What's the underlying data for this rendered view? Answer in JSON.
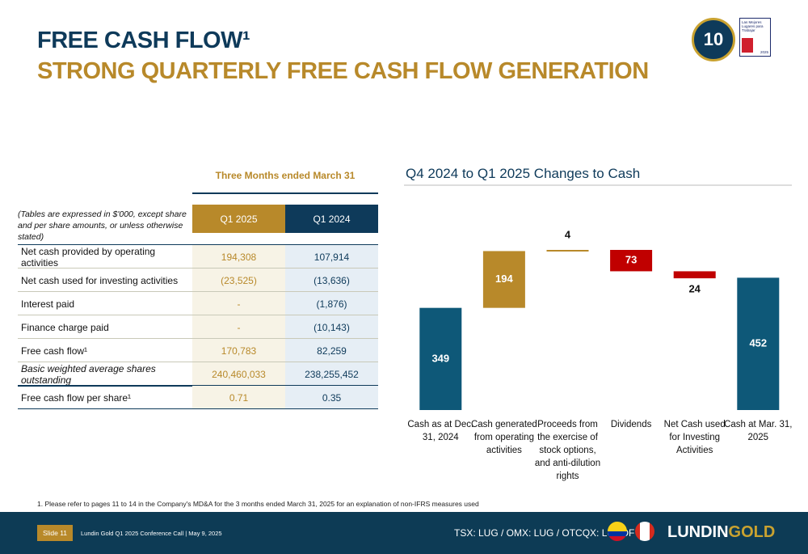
{
  "header": {
    "title": "FREE CASH FLOW¹",
    "subtitle": "STRONG QUARTERLY FREE CASH FLOW GENERATION"
  },
  "badges": {
    "anniversary": "10",
    "gptw": "Las Mejores Lugares para Trabajar",
    "gptw_year": "2025"
  },
  "table": {
    "period": "Three Months ended March 31",
    "note": "(Tables are expressed in $'000, except share and per share amounts, or unless otherwise stated)",
    "columns": [
      "Q1 2025",
      "Q1 2024"
    ],
    "rows": [
      [
        "Net cash provided by operating activities",
        "194,308",
        "107,914"
      ],
      [
        "Net cash used for investing activities",
        "(23,525)",
        "(13,636)"
      ],
      [
        "Interest paid",
        "-",
        "(1,876)"
      ],
      [
        "Finance charge paid",
        "-",
        "(10,143)"
      ],
      [
        "Free cash flow¹",
        "170,783",
        "82,259"
      ],
      [
        "Basic weighted average shares outstanding",
        "240,460,033",
        "238,255,452"
      ],
      [
        "Free cash flow per share¹",
        "0.71",
        "0.35"
      ]
    ]
  },
  "chart_data": {
    "type": "waterfall",
    "title": "Q4 2024 to Q1 2025 Changes to Cash",
    "categories": [
      "Cash as at Dec. 31, 2024",
      "Cash generated from operating activities",
      "Proceeds from the exercise of stock options, and anti-dilution rights",
      "Dividends",
      "Net Cash used for Investing Activities",
      "Cash at Mar. 31, 2025"
    ],
    "measure": [
      "total",
      "relative",
      "relative",
      "relative",
      "relative",
      "total"
    ],
    "values": [
      349,
      194,
      4,
      -73,
      -24,
      452
    ],
    "value_labels": [
      "349",
      "194",
      "4",
      "73",
      "24",
      "452"
    ],
    "colors": {
      "total": "#0e5878",
      "increase": "#b8892a",
      "decrease": "#c00000"
    }
  },
  "footnote": "1.   Please refer to pages 11 to 14 in the Company's MD&A for the 3 months ended March 31, 2025 for an explanation of non-IFRS measures used",
  "footer": {
    "slide": "Slide 11",
    "event": "Lundin Gold Q1 2025 Conference Call | May 9, 2025",
    "tickers": "TSX: LUG / OMX: LUG / OTCQX: LUGDF",
    "logo_a": "LUNDIN",
    "logo_b": "GOLD"
  }
}
